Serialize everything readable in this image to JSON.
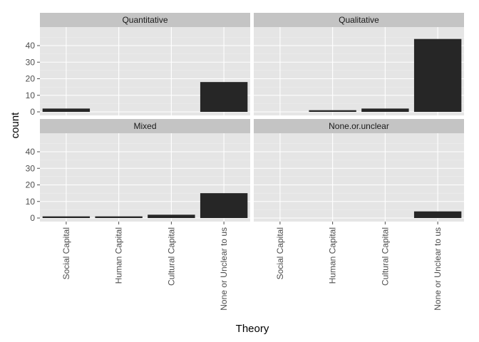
{
  "chart_data": {
    "type": "bar",
    "layout": "facet-grid-2x2",
    "xlabel": "Theory",
    "ylabel": "count",
    "categories": [
      "Social Capital",
      "Human Capital",
      "Cultural Capital",
      "None or Unclear to us"
    ],
    "ylim": [
      0,
      45
    ],
    "yticks": [
      0,
      10,
      20,
      30,
      40
    ],
    "grid": true,
    "colors": {
      "panel_background": "#e5e5e5",
      "strip_background": "#c4c4c4",
      "bar_fill": "#262626",
      "grid_major": "#ffffff",
      "grid_minor": "#f0f0f0"
    },
    "facets": [
      {
        "label": "Quantitative",
        "values": [
          2,
          0,
          0,
          18
        ]
      },
      {
        "label": "Qualitative",
        "values": [
          0,
          1,
          2,
          44
        ]
      },
      {
        "label": "Mixed",
        "values": [
          1,
          1,
          2,
          15
        ]
      },
      {
        "label": "None.or.unclear",
        "values": [
          0,
          0,
          0,
          4
        ]
      }
    ]
  }
}
